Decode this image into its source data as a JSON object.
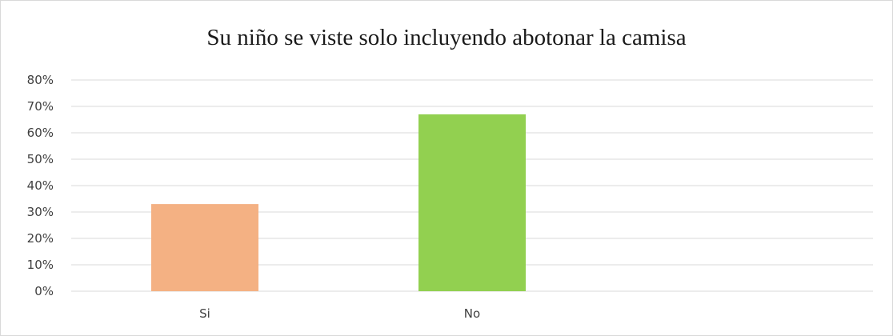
{
  "chart_data": {
    "type": "bar",
    "title": "Su niño se viste solo incluyendo abotonar la camisa",
    "xlabel": "",
    "ylabel": "",
    "categories": [
      "Si",
      "No"
    ],
    "values": [
      33,
      67
    ],
    "value_format": "percent",
    "ylim": [
      0,
      80
    ],
    "yticks": [
      0,
      10,
      20,
      30,
      40,
      50,
      60,
      70,
      80
    ],
    "ytick_labels": [
      "0%",
      "10%",
      "20%",
      "30%",
      "40%",
      "50%",
      "60%",
      "70%",
      "80%"
    ],
    "grid": true,
    "legend": "none",
    "colors": [
      "#f4b183",
      "#92d050"
    ],
    "gridline_color": "#d9d9d9"
  }
}
